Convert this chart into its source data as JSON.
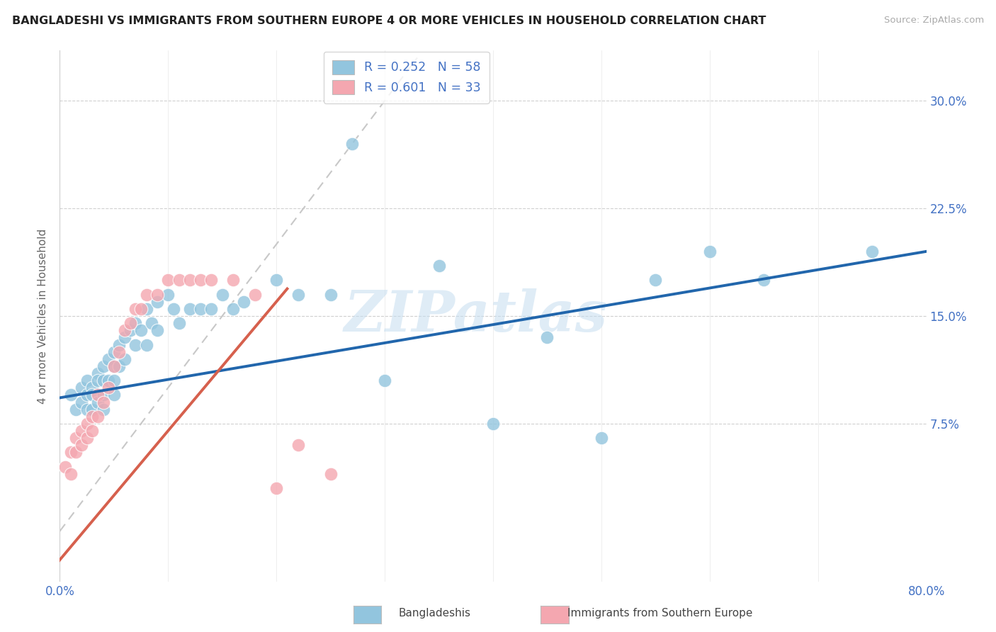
{
  "title": "BANGLADESHI VS IMMIGRANTS FROM SOUTHERN EUROPE 4 OR MORE VEHICLES IN HOUSEHOLD CORRELATION CHART",
  "source": "Source: ZipAtlas.com",
  "ylabel": "4 or more Vehicles in Household",
  "xlim": [
    0.0,
    0.8
  ],
  "ylim": [
    -0.035,
    0.335
  ],
  "yticks": [
    0.0,
    0.075,
    0.15,
    0.225,
    0.3
  ],
  "ytick_labels": [
    "",
    "7.5%",
    "15.0%",
    "22.5%",
    "30.0%"
  ],
  "blue_color": "#92c5de",
  "pink_color": "#f4a7b0",
  "blue_line_color": "#2166ac",
  "pink_line_color": "#d6604d",
  "diagonal_color": "#c8c8c8",
  "watermark": "ZIPatlas",
  "legend1_label": "R = 0.252   N = 58",
  "legend2_label": "R = 0.601   N = 33",
  "blue_x": [
    0.01,
    0.015,
    0.02,
    0.02,
    0.025,
    0.025,
    0.025,
    0.03,
    0.03,
    0.03,
    0.035,
    0.035,
    0.035,
    0.04,
    0.04,
    0.04,
    0.04,
    0.045,
    0.045,
    0.05,
    0.05,
    0.05,
    0.05,
    0.055,
    0.055,
    0.06,
    0.06,
    0.065,
    0.07,
    0.07,
    0.075,
    0.08,
    0.08,
    0.085,
    0.09,
    0.09,
    0.1,
    0.105,
    0.11,
    0.12,
    0.13,
    0.14,
    0.15,
    0.16,
    0.17,
    0.2,
    0.22,
    0.25,
    0.27,
    0.3,
    0.35,
    0.4,
    0.45,
    0.5,
    0.55,
    0.6,
    0.65,
    0.75
  ],
  "blue_y": [
    0.095,
    0.085,
    0.1,
    0.09,
    0.105,
    0.095,
    0.085,
    0.1,
    0.095,
    0.085,
    0.11,
    0.105,
    0.09,
    0.115,
    0.105,
    0.095,
    0.085,
    0.12,
    0.105,
    0.125,
    0.115,
    0.105,
    0.095,
    0.13,
    0.115,
    0.135,
    0.12,
    0.14,
    0.145,
    0.13,
    0.14,
    0.155,
    0.13,
    0.145,
    0.16,
    0.14,
    0.165,
    0.155,
    0.145,
    0.155,
    0.155,
    0.155,
    0.165,
    0.155,
    0.16,
    0.175,
    0.165,
    0.165,
    0.27,
    0.105,
    0.185,
    0.075,
    0.135,
    0.065,
    0.175,
    0.195,
    0.175,
    0.195
  ],
  "pink_x": [
    0.005,
    0.01,
    0.01,
    0.015,
    0.015,
    0.02,
    0.02,
    0.025,
    0.025,
    0.03,
    0.03,
    0.035,
    0.035,
    0.04,
    0.045,
    0.05,
    0.055,
    0.06,
    0.065,
    0.07,
    0.075,
    0.08,
    0.09,
    0.1,
    0.11,
    0.12,
    0.13,
    0.14,
    0.16,
    0.18,
    0.2,
    0.22,
    0.25
  ],
  "pink_y": [
    0.045,
    0.055,
    0.04,
    0.065,
    0.055,
    0.07,
    0.06,
    0.075,
    0.065,
    0.08,
    0.07,
    0.095,
    0.08,
    0.09,
    0.1,
    0.115,
    0.125,
    0.14,
    0.145,
    0.155,
    0.155,
    0.165,
    0.165,
    0.175,
    0.175,
    0.175,
    0.175,
    0.175,
    0.175,
    0.165,
    0.03,
    0.06,
    0.04
  ],
  "blue_line_x": [
    0.0,
    0.8
  ],
  "blue_line_y": [
    0.093,
    0.195
  ],
  "pink_line_x_start": -0.01,
  "pink_line_x_end": 0.21,
  "pink_slope": 0.9,
  "pink_intercept": -0.02
}
